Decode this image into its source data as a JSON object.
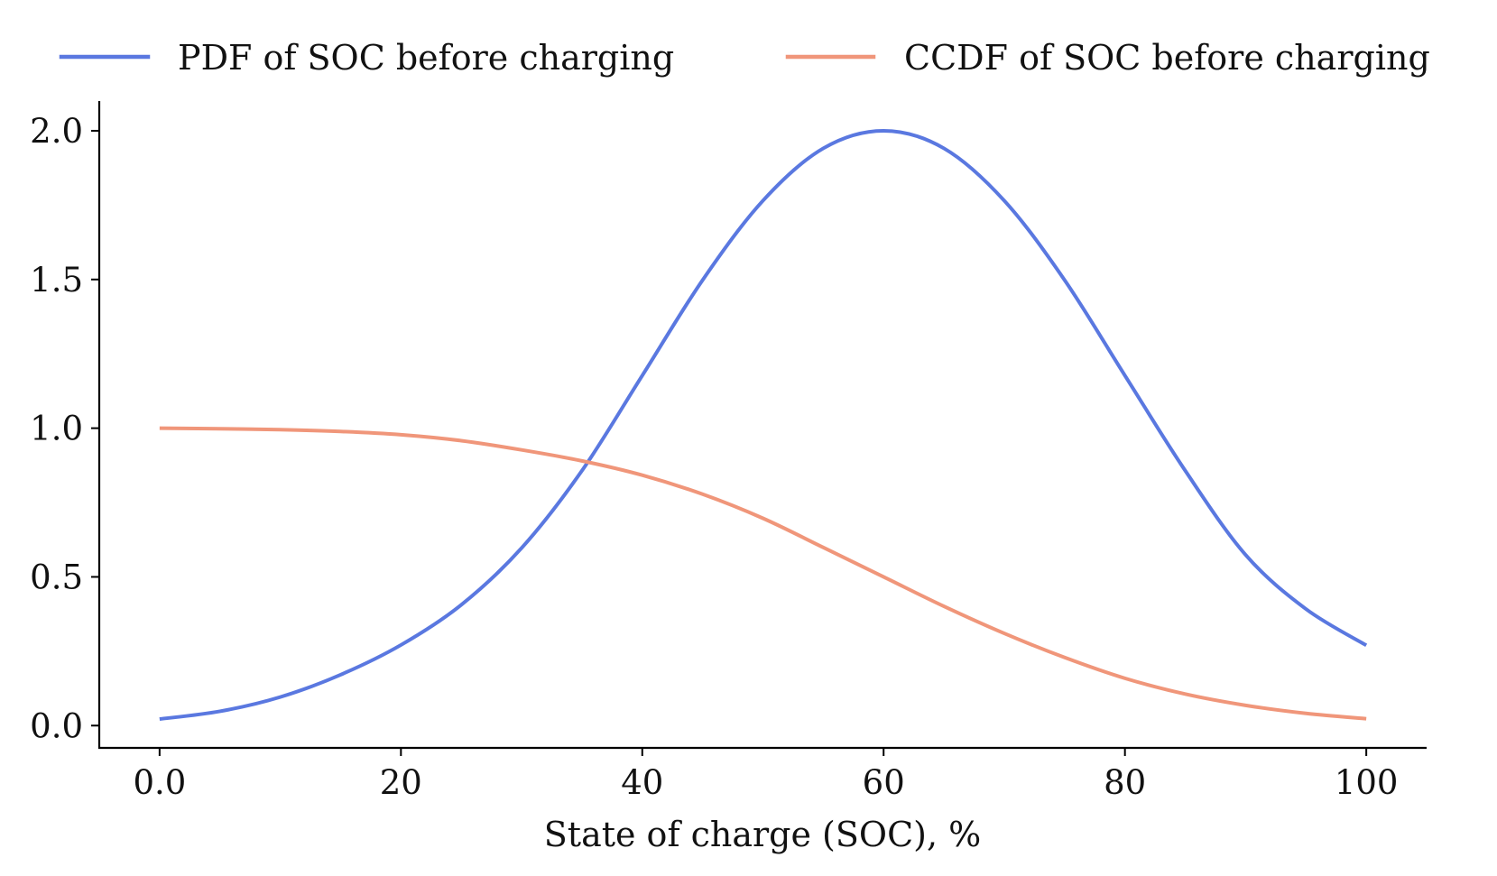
{
  "chart_data": {
    "type": "line",
    "title": "",
    "xlabel": "State of charge (SOC), %",
    "ylabel": "",
    "xlim": [
      -5,
      105
    ],
    "ylim": [
      -0.075,
      2.1
    ],
    "xticks": [
      0,
      20,
      40,
      60,
      80,
      100
    ],
    "xtick_labels": [
      "0.0",
      "20",
      "40",
      "60",
      "80",
      "100"
    ],
    "yticks": [
      0.0,
      0.5,
      1.0,
      1.5,
      2.0
    ],
    "ytick_labels": [
      "0.0",
      "0.5",
      "1.0",
      "1.5",
      "2.0"
    ],
    "grid": false,
    "legend_position": "top",
    "x": [
      0,
      5,
      10,
      15,
      20,
      25,
      30,
      35,
      40,
      45,
      50,
      55,
      60,
      65,
      70,
      75,
      80,
      85,
      90,
      95,
      100
    ],
    "series": [
      {
        "name": "PDF of SOC before charging",
        "color": "#5a78e0",
        "values": [
          0.022,
          0.048,
          0.096,
          0.171,
          0.271,
          0.406,
          0.597,
          0.857,
          1.177,
          1.498,
          1.765,
          1.941,
          2.0,
          1.941,
          1.765,
          1.498,
          1.177,
          0.857,
          0.574,
          0.392,
          0.27
        ]
      },
      {
        "name": "CCDF of SOC before charging",
        "color": "#f0967a",
        "values": [
          1.0,
          0.998,
          0.995,
          0.989,
          0.978,
          0.958,
          0.927,
          0.89,
          0.842,
          0.778,
          0.697,
          0.599,
          0.5,
          0.401,
          0.31,
          0.229,
          0.159,
          0.106,
          0.068,
          0.041,
          0.023
        ]
      }
    ]
  }
}
